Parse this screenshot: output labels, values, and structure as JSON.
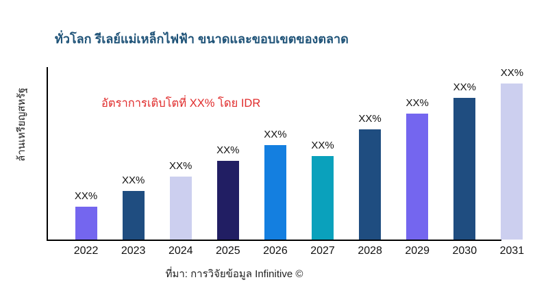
{
  "header": {
    "title": "ทั่วโลก รีเลย์แม่เหล็กไฟฟ้า ขนาดและขอบเขตของตลาด",
    "title_color": "#1f5378"
  },
  "annotation": {
    "growth_note": "อัตราการเติบโตที่ XX% โดย IDR",
    "color": "#e02b2b"
  },
  "source": {
    "text": "ที่มา: การวิจัยข้อมูล Infinitive ©"
  },
  "chart_data": {
    "type": "bar",
    "title": "ทั่วโลก รีเลย์แม่เหล็กไฟฟ้า ขนาดและขอบเขตของตลาด",
    "xlabel": "",
    "ylabel": "ล้านเหรียญสหรัฐ",
    "categories": [
      "2022",
      "2023",
      "2024",
      "2025",
      "2026",
      "2027",
      "2028",
      "2029",
      "2030",
      "2031"
    ],
    "data_labels": [
      "XX%",
      "XX%",
      "XX%",
      "XX%",
      "XX%",
      "XX%",
      "XX%",
      "XX%",
      "XX%",
      "XX%"
    ],
    "values_relative": [
      21,
      31,
      40,
      50,
      60,
      53,
      70,
      80,
      90,
      100
    ],
    "values_note": "numeric values masked as XX% in source image; values_relative are estimated bar heights as % of tallest bar (2031)",
    "bar_colors": [
      "#7466ef",
      "#1f4d80",
      "#cccfef",
      "#211e63",
      "#147fe0",
      "#0aa1bc",
      "#1f4d80",
      "#7466ef",
      "#1f4d80",
      "#cccfef"
    ],
    "annotation": "อัตราการเติบโตที่ XX% โดย IDR",
    "grid": false,
    "legend": false,
    "axis_color": "#000000"
  }
}
